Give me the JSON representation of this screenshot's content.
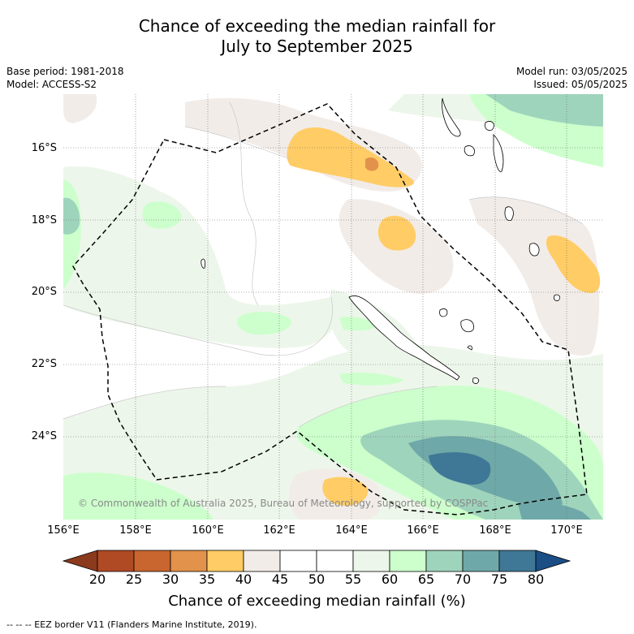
{
  "title_line1": "Chance of exceeding the median rainfall for",
  "title_line2": "July to September 2025",
  "base_period": "Base period: 1981-2018",
  "model": "Model: ACCESS-S2",
  "model_run": "Model run: 03/05/2025",
  "issued": "Issued: 05/05/2025",
  "copyright": "© Commonwealth of Australia 2025, Bureau of Meteorology, supported by COSPPac",
  "lat_labels": [
    "16°S",
    "18°S",
    "20°S",
    "22°S",
    "24°S"
  ],
  "lon_labels": [
    "156°E",
    "158°E",
    "160°E",
    "162°E",
    "164°E",
    "166°E",
    "168°E",
    "170°E"
  ],
  "colorbar": {
    "ticks": [
      "20",
      "25",
      "30",
      "35",
      "40",
      "45",
      "50",
      "55",
      "60",
      "65",
      "70",
      "75",
      "80"
    ],
    "colors": [
      "#8c3a1e",
      "#b04a24",
      "#c9652e",
      "#e2924a",
      "#ffcc66",
      "#f2ece8",
      "#ffffff",
      "#ffffff",
      "#edf6ea",
      "#ccffcc",
      "#9fd4bc",
      "#6fa8a8",
      "#3f7896",
      "#1a4e85"
    ],
    "label": "Chance of exceeding median rainfall (%)"
  },
  "footnote": "--  --  -- EEZ border V11 (Flanders Marine Institute, 2019)."
}
